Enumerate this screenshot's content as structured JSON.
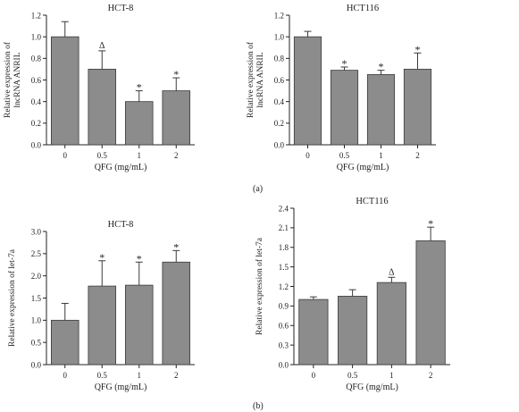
{
  "panels": [
    {
      "label": "(a)"
    },
    {
      "label": "(b)"
    }
  ],
  "style": {
    "bar_fill": "#8c8c8c",
    "bar_stroke": "#3a3a3a",
    "axis": "#222222"
  },
  "chart_data": [
    {
      "type": "bar",
      "title": "HCT-8",
      "xlabel": "QFG (mg/mL)",
      "ylabel": [
        "Relative expression of",
        "lncRNA ANRIL"
      ],
      "categories": [
        "0",
        "0.5",
        "1",
        "2"
      ],
      "values": [
        1.0,
        0.7,
        0.4,
        0.5
      ],
      "errors": [
        0.14,
        0.17,
        0.1,
        0.12
      ],
      "markers": [
        "",
        "Δ",
        "*",
        "*"
      ],
      "ylim": [
        0,
        1.2
      ],
      "yticks": [
        "0.0",
        "0.2",
        "0.4",
        "0.6",
        "0.8",
        "1.0",
        "1.2"
      ]
    },
    {
      "type": "bar",
      "title": "HCT116",
      "xlabel": "QFG (mg/mL)",
      "ylabel": [
        "Relative expression of",
        "lncRNA ANRIL"
      ],
      "categories": [
        "0",
        "0.5",
        "1",
        "2"
      ],
      "values": [
        1.0,
        0.69,
        0.65,
        0.7
      ],
      "errors": [
        0.05,
        0.03,
        0.04,
        0.15
      ],
      "markers": [
        "",
        "*",
        "*",
        "*"
      ],
      "ylim": [
        0,
        1.2
      ],
      "yticks": [
        "0.0",
        "0.2",
        "0.4",
        "0.6",
        "0.8",
        "1.0",
        "1.2"
      ]
    },
    {
      "type": "bar",
      "title": "HCT-8",
      "xlabel": "QFG (mg/mL)",
      "ylabel": [
        "Relative expression of let-7a"
      ],
      "categories": [
        "0",
        "0.5",
        "1",
        "2"
      ],
      "values": [
        1.0,
        1.77,
        1.79,
        2.31
      ],
      "errors": [
        0.38,
        0.57,
        0.52,
        0.26
      ],
      "markers": [
        "",
        "*",
        "*",
        "*"
      ],
      "ylim": [
        0,
        3.0
      ],
      "yticks": [
        "0.0",
        "0.5",
        "1.0",
        "1.5",
        "2.0",
        "2.5",
        "3.0"
      ]
    },
    {
      "type": "bar",
      "title": "HCT116",
      "xlabel": "QFG (mg/mL)",
      "ylabel": [
        "Relative expression of let-7a"
      ],
      "categories": [
        "0",
        "0.5",
        "1",
        "2"
      ],
      "values": [
        1.0,
        1.05,
        1.26,
        1.9
      ],
      "errors": [
        0.04,
        0.1,
        0.08,
        0.21
      ],
      "markers": [
        "",
        "",
        "Δ",
        "*"
      ],
      "ylim": [
        0,
        2.4
      ],
      "yticks": [
        "0.0",
        "0.3",
        "0.6",
        "0.9",
        "1.2",
        "1.5",
        "1.8",
        "2.1",
        "2.4"
      ]
    }
  ]
}
